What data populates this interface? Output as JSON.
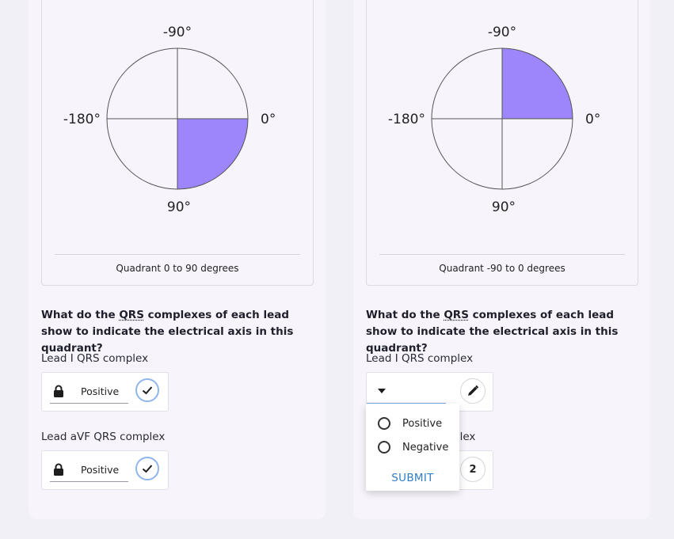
{
  "left_panel": {
    "diagram": {
      "label_top": "-90°",
      "label_left": "-180°",
      "label_right": "0°",
      "label_bottom": "90°",
      "highlighted_quadrant": "bottom-right",
      "highlight_color": "#9d86fb"
    },
    "caption": "Quadrant 0 to 90 degrees",
    "question": {
      "prefix": "What do the ",
      "abbr": "QRS",
      "suffix": " complexes of each lead show to indicate the electrical axis in this quadrant?"
    },
    "lead1": {
      "label": "Lead I QRS complex",
      "value": "Positive",
      "status_icon": "check-icon"
    },
    "leadavf": {
      "label": "Lead aVF QRS complex",
      "value": "Positive",
      "status_icon": "check-icon"
    }
  },
  "right_panel": {
    "diagram": {
      "label_top": "-90°",
      "label_left": "-180°",
      "label_right": "0°",
      "label_bottom": "90°",
      "highlighted_quadrant": "top-right",
      "highlight_color": "#9d86fb"
    },
    "caption": "Quadrant -90 to 0 degrees",
    "question": {
      "prefix": "What do the ",
      "abbr": "QRS",
      "suffix": " complexes of each lead show to indicate the electrical axis in this quadrant?"
    },
    "lead1": {
      "label": "Lead I QRS complex",
      "edit_icon": "pencil-icon"
    },
    "leadavf": {
      "label_visible": "plex",
      "step_number": "2"
    },
    "dropdown": {
      "options": [
        "Positive",
        "Negative"
      ],
      "submit_label": "SUBMIT"
    }
  }
}
